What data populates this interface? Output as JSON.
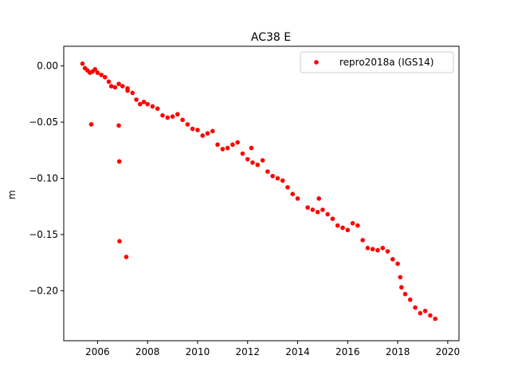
{
  "chart_data": {
    "type": "scatter",
    "title": "AC38 E",
    "xlabel": "",
    "ylabel": "m",
    "xlim": [
      2004.65,
      2020.45
    ],
    "ylim": [
      -0.2445,
      0.0175
    ],
    "grid": false,
    "legend_position": "top-right",
    "x_ticks": [
      2006,
      2008,
      2010,
      2012,
      2014,
      2016,
      2018,
      2020
    ],
    "x_tick_labels": [
      "2006",
      "2008",
      "2010",
      "2012",
      "2014",
      "2016",
      "2018",
      "2020"
    ],
    "y_ticks": [
      0.0,
      -0.05,
      -0.1,
      -0.15,
      -0.2
    ],
    "y_tick_labels": [
      "0.00",
      "−0.05",
      "−0.10",
      "−0.15",
      "−0.20"
    ],
    "series": [
      {
        "name": "repro2018a (IGS14)",
        "color": "#ff0000",
        "marker": "circle",
        "x": [
          2005.4,
          2005.5,
          2005.6,
          2005.7,
          2005.8,
          2005.9,
          2006.0,
          2006.15,
          2006.3,
          2006.45,
          2006.55,
          2006.7,
          2006.85,
          2007.0,
          2007.2,
          2007.4,
          2007.55,
          2007.7,
          2007.85,
          2008.0,
          2008.2,
          2008.4,
          2008.6,
          2008.8,
          2009.0,
          2009.2,
          2009.4,
          2009.6,
          2009.8,
          2010.0,
          2010.2,
          2010.4,
          2010.6,
          2010.8,
          2011.0,
          2011.2,
          2011.4,
          2011.6,
          2011.8,
          2012.0,
          2012.2,
          2012.4,
          2012.6,
          2012.8,
          2013.0,
          2013.2,
          2013.4,
          2013.6,
          2013.8,
          2014.0,
          2014.4,
          2014.6,
          2014.8,
          2015.0,
          2015.2,
          2015.4,
          2015.6,
          2015.8,
          2016.0,
          2016.2,
          2016.4,
          2016.6,
          2016.8,
          2017.0,
          2017.2,
          2017.4,
          2017.6,
          2017.8,
          2018.0,
          2018.15,
          2018.3,
          2018.5,
          2018.7,
          2018.9,
          2019.1,
          2019.3,
          2019.5,
          2005.75,
          2006.85,
          2006.87,
          2006.88,
          2007.15,
          2007.2,
          2012.15,
          2014.85,
          2018.1
        ],
        "y": [
          0.002,
          -0.002,
          -0.004,
          -0.006,
          -0.005,
          -0.003,
          -0.006,
          -0.008,
          -0.01,
          -0.014,
          -0.018,
          -0.019,
          -0.016,
          -0.018,
          -0.02,
          -0.024,
          -0.03,
          -0.034,
          -0.032,
          -0.034,
          -0.036,
          -0.038,
          -0.044,
          -0.046,
          -0.045,
          -0.043,
          -0.048,
          -0.052,
          -0.056,
          -0.057,
          -0.062,
          -0.06,
          -0.058,
          -0.07,
          -0.074,
          -0.073,
          -0.07,
          -0.068,
          -0.078,
          -0.083,
          -0.086,
          -0.088,
          -0.084,
          -0.094,
          -0.098,
          -0.1,
          -0.102,
          -0.108,
          -0.114,
          -0.118,
          -0.126,
          -0.128,
          -0.13,
          -0.128,
          -0.132,
          -0.136,
          -0.142,
          -0.144,
          -0.146,
          -0.14,
          -0.142,
          -0.155,
          -0.162,
          -0.163,
          -0.164,
          -0.162,
          -0.165,
          -0.172,
          -0.176,
          -0.197,
          -0.203,
          -0.208,
          -0.215,
          -0.22,
          -0.218,
          -0.222,
          -0.225,
          -0.052,
          -0.053,
          -0.085,
          -0.156,
          -0.17,
          -0.022,
          -0.073,
          -0.118,
          -0.188
        ]
      }
    ]
  }
}
